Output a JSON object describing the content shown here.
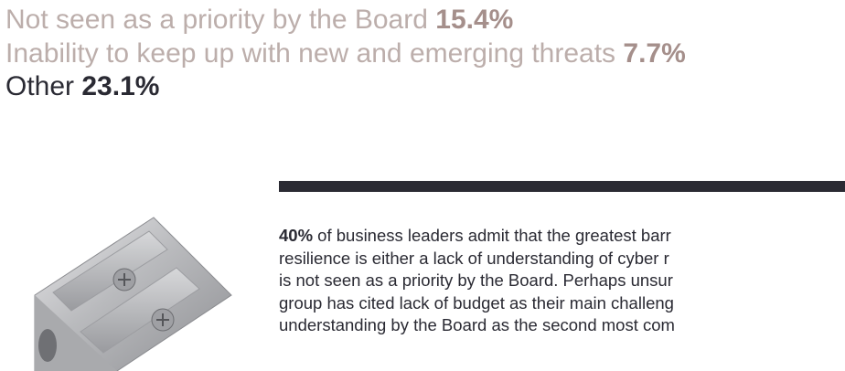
{
  "legend": {
    "items": [
      {
        "label": "Not seen as a priority by the Board",
        "value": "15.4%"
      },
      {
        "label": "Inability to keep up with new and emerging threats",
        "value": "7.7%"
      },
      {
        "label": "Other",
        "value": "23.1%"
      }
    ]
  },
  "paragraph": {
    "lead": "40%",
    "lines": [
      " of business leaders admit that the greatest barr",
      "resilience is either a lack of understanding of cyber r",
      "is not seen as a priority by the Board. Perhaps unsur",
      "group has cited lack of budget as their main challeng",
      "understanding by the Board as the second most com"
    ]
  }
}
